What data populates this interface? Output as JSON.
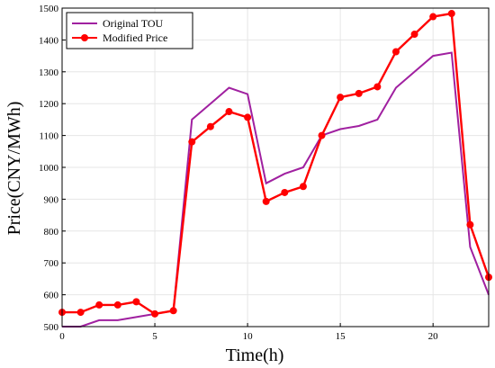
{
  "chart_data": {
    "type": "line",
    "xlabel": "Time(h)",
    "ylabel": "Price(CNY/MWh)",
    "xlim": [
      0,
      23
    ],
    "ylim": [
      500,
      1500
    ],
    "xticks": [
      "0",
      "5",
      "10",
      "15",
      "20"
    ],
    "yticks": [
      "500",
      "600",
      "700",
      "800",
      "900",
      "1000",
      "1100",
      "1200",
      "1300",
      "1400",
      "1500"
    ],
    "grid": true,
    "legend_position": "top-left",
    "x": [
      0,
      1,
      2,
      3,
      4,
      5,
      6,
      7,
      8,
      9,
      10,
      11,
      12,
      13,
      14,
      15,
      16,
      17,
      18,
      19,
      20,
      21,
      22,
      23
    ],
    "series": [
      {
        "name": "Original TOU",
        "color": "#a020a0",
        "marker": "none",
        "values": [
          500,
          500,
          520,
          520,
          530,
          540,
          550,
          1150,
          1200,
          1250,
          1230,
          950,
          980,
          1000,
          1100,
          1120,
          1130,
          1150,
          1250,
          1300,
          1350,
          1360,
          750,
          600
        ]
      },
      {
        "name": "Modified Price",
        "color": "#ff0000",
        "marker": "circle",
        "values": [
          545,
          545,
          568,
          568,
          578,
          540,
          550,
          1080,
          1128,
          1175,
          1157,
          893,
          921,
          940,
          1100,
          1220,
          1232,
          1253,
          1363,
          1418,
          1473,
          1483,
          820,
          655
        ]
      }
    ]
  }
}
